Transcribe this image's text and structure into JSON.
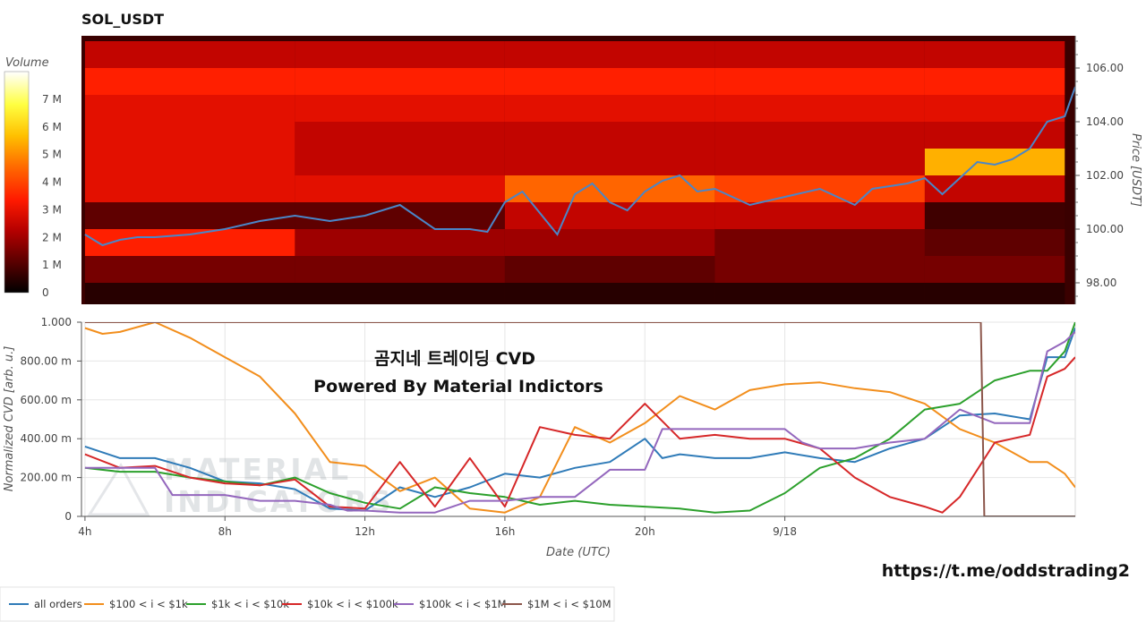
{
  "chart_data": [
    {
      "type": "heatmap",
      "title": "SOL_USDT",
      "ylabel": "Price [USDT]",
      "ylim": [
        97.2,
        107.2
      ],
      "y_ticks": [
        "98.00",
        "100.00",
        "102.00",
        "104.00",
        "106.00"
      ],
      "y_tick_values": [
        98,
        100,
        102,
        104,
        106
      ],
      "colorbar": {
        "title": "Volume",
        "range": [
          0,
          8000000
        ],
        "tick_values": [
          0,
          1000000,
          2000000,
          3000000,
          4000000,
          5000000,
          6000000,
          7000000
        ],
        "tick_labels": [
          "0",
          "1 M",
          "2 M",
          "3 M",
          "4 M",
          "5 M",
          "6 M",
          "7 M"
        ],
        "colors": [
          "#000000",
          "#5a0000",
          "#b40000",
          "#ff1a00",
          "#ff6a00",
          "#ffc000",
          "#ffff40",
          "#ffffff"
        ]
      },
      "price_bins": [
        97.5,
        98.5,
        99.5,
        100.5,
        101.5,
        102.5,
        103.5,
        104.5,
        105.5,
        106.5
      ],
      "volume_profile": [
        {
          "hours_from": 0,
          "hours_to": 6,
          "volumes": [
            500000,
            1500000,
            3500000,
            1200000,
            3000000,
            3000000,
            3000000,
            3000000,
            3500000,
            2500000
          ]
        },
        {
          "hours_from": 6,
          "hours_to": 12,
          "volumes": [
            500000,
            1500000,
            2000000,
            1200000,
            3000000,
            2500000,
            2500000,
            3000000,
            3500000,
            2500000
          ]
        },
        {
          "hours_from": 12,
          "hours_to": 18,
          "volumes": [
            500000,
            1200000,
            2000000,
            2500000,
            4500000,
            2500000,
            2500000,
            3000000,
            3500000,
            2500000
          ]
        },
        {
          "hours_from": 18,
          "hours_to": 24,
          "volumes": [
            500000,
            1500000,
            1500000,
            2500000,
            4000000,
            2500000,
            2500000,
            3000000,
            3500000,
            2500000
          ]
        },
        {
          "hours_from": 24,
          "hours_to": 28,
          "volumes": [
            500000,
            1500000,
            1200000,
            800000,
            2500000,
            5500000,
            2500000,
            3000000,
            3500000,
            2500000
          ]
        }
      ],
      "price_series": {
        "name": "Price",
        "x_hours": [
          0,
          0.5,
          1,
          1.5,
          2,
          3,
          4,
          5,
          6,
          7,
          8,
          9,
          10,
          11,
          11.5,
          12,
          12.5,
          13,
          13.5,
          14,
          14.5,
          15,
          15.5,
          16,
          16.5,
          17,
          17.5,
          18,
          19,
          20,
          21,
          22,
          22.5,
          23,
          23.5,
          24,
          24.5,
          25,
          25.5,
          26,
          26.5,
          27,
          27.5,
          28,
          28.3
        ],
        "y": [
          99.8,
          99.4,
          99.6,
          99.7,
          99.7,
          99.8,
          100.0,
          100.3,
          100.5,
          100.3,
          100.5,
          100.9,
          100.0,
          100.0,
          99.9,
          101.0,
          101.4,
          100.6,
          99.8,
          101.3,
          101.7,
          101.0,
          100.7,
          101.4,
          101.8,
          102.0,
          101.4,
          101.5,
          100.9,
          101.2,
          101.5,
          100.9,
          101.5,
          101.6,
          101.7,
          101.9,
          101.3,
          101.9,
          102.5,
          102.4,
          102.6,
          103.0,
          104.0,
          104.2,
          105.3
        ]
      }
    },
    {
      "type": "line",
      "ylabel": "Normalized CVD [arb. u.]",
      "xlabel": "Date (UTC)",
      "ylim": [
        0,
        1
      ],
      "y_ticks": [
        "0",
        "200.00 m",
        "400.00 m",
        "600.00 m",
        "800.00 m",
        "1.000"
      ],
      "y_tick_values": [
        0,
        0.2,
        0.4,
        0.6,
        0.8,
        1.0
      ],
      "x_range_hours": [
        -0.1,
        28.3
      ],
      "x_ticks": [
        "4h",
        "8h",
        "12h",
        "16h",
        "20h",
        "9/18"
      ],
      "x_tick_hours": [
        0,
        4,
        8,
        12,
        16,
        20
      ],
      "annotations": [
        "곰지네 트레이딩 CVD",
        "Powered By Material Indictors"
      ],
      "series": [
        {
          "name": "all orders",
          "color": "#2f7bb8",
          "x": [
            0,
            1,
            2,
            3,
            4,
            5,
            6,
            7,
            8,
            9,
            10,
            11,
            12,
            13,
            14,
            15,
            16,
            16.5,
            17,
            18,
            19,
            20,
            21,
            22,
            23,
            24,
            25,
            26,
            27,
            27.5,
            28,
            28.3
          ],
          "y": [
            0.36,
            0.3,
            0.3,
            0.25,
            0.18,
            0.17,
            0.14,
            0.04,
            0.03,
            0.15,
            0.1,
            0.15,
            0.22,
            0.2,
            0.25,
            0.28,
            0.4,
            0.3,
            0.32,
            0.3,
            0.3,
            0.33,
            0.3,
            0.28,
            0.35,
            0.4,
            0.52,
            0.53,
            0.5,
            0.82,
            0.82,
            0.97
          ]
        },
        {
          "name": "$100 < i < $1k",
          "color": "#f28e1c",
          "x": [
            0,
            0.5,
            1,
            2,
            3,
            4,
            5,
            6,
            7,
            8,
            9,
            10,
            11,
            12,
            13,
            14,
            14.5,
            15,
            16,
            17,
            18,
            19,
            20,
            21,
            22,
            23,
            24,
            25,
            26,
            27,
            27.5,
            28,
            28.3
          ],
          "y": [
            0.97,
            0.94,
            0.95,
            1.0,
            0.92,
            0.82,
            0.72,
            0.53,
            0.28,
            0.26,
            0.13,
            0.2,
            0.04,
            0.02,
            0.1,
            0.46,
            0.42,
            0.38,
            0.48,
            0.62,
            0.55,
            0.65,
            0.68,
            0.69,
            0.66,
            0.64,
            0.58,
            0.45,
            0.38,
            0.28,
            0.28,
            0.22,
            0.15
          ]
        },
        {
          "name": "$1k < i < $10k",
          "color": "#2ca02c",
          "x": [
            0,
            1,
            2,
            3,
            4,
            5,
            6,
            7,
            8,
            9,
            10,
            11,
            12,
            13,
            14,
            15,
            16,
            17,
            18,
            19,
            20,
            21,
            22,
            23,
            24,
            25,
            26,
            27,
            27.5,
            28,
            28.3
          ],
          "y": [
            0.25,
            0.23,
            0.23,
            0.2,
            0.18,
            0.16,
            0.2,
            0.12,
            0.07,
            0.04,
            0.15,
            0.12,
            0.1,
            0.06,
            0.08,
            0.06,
            0.05,
            0.04,
            0.02,
            0.03,
            0.12,
            0.25,
            0.3,
            0.4,
            0.55,
            0.58,
            0.7,
            0.75,
            0.75,
            0.85,
            1.0
          ]
        },
        {
          "name": "$10k < i < $100k",
          "color": "#d62728",
          "x": [
            0,
            1,
            2,
            3,
            4,
            5,
            6,
            7,
            8,
            9,
            10,
            11,
            12,
            13,
            14,
            15,
            16,
            17,
            18,
            19,
            20,
            21,
            22,
            23,
            24,
            24.5,
            25,
            26,
            27,
            27.5,
            28,
            28.3
          ],
          "y": [
            0.32,
            0.25,
            0.26,
            0.2,
            0.17,
            0.16,
            0.19,
            0.05,
            0.04,
            0.28,
            0.05,
            0.3,
            0.05,
            0.46,
            0.42,
            0.4,
            0.58,
            0.4,
            0.42,
            0.4,
            0.4,
            0.35,
            0.2,
            0.1,
            0.05,
            0.02,
            0.1,
            0.38,
            0.42,
            0.72,
            0.76,
            0.82
          ]
        },
        {
          "name": "$100k < i < $1M",
          "color": "#9467bd",
          "x": [
            0,
            1,
            2,
            2.5,
            3,
            4,
            5,
            6,
            7,
            7.5,
            8,
            9,
            10,
            11,
            12,
            13,
            14,
            15,
            16,
            16.5,
            17,
            18,
            19,
            20,
            20.5,
            21,
            22,
            23,
            24,
            25,
            26,
            27,
            27.5,
            28,
            28.3
          ],
          "y": [
            0.25,
            0.25,
            0.25,
            0.11,
            0.11,
            0.11,
            0.08,
            0.08,
            0.06,
            0.03,
            0.03,
            0.02,
            0.02,
            0.08,
            0.08,
            0.1,
            0.1,
            0.24,
            0.24,
            0.45,
            0.45,
            0.45,
            0.45,
            0.45,
            0.38,
            0.35,
            0.35,
            0.38,
            0.4,
            0.55,
            0.48,
            0.48,
            0.85,
            0.9,
            0.95
          ]
        },
        {
          "name": "$1M < i < $10M",
          "color": "#8c564b",
          "x": [
            0,
            25.6,
            25.7,
            28.3
          ],
          "y": [
            1.0,
            1.0,
            0.0,
            0.0
          ]
        }
      ]
    }
  ],
  "footer": {
    "link": "https://t.me/oddstrading2",
    "watermark_line1": "MATERIAL",
    "watermark_line2": "INDICATORS"
  }
}
